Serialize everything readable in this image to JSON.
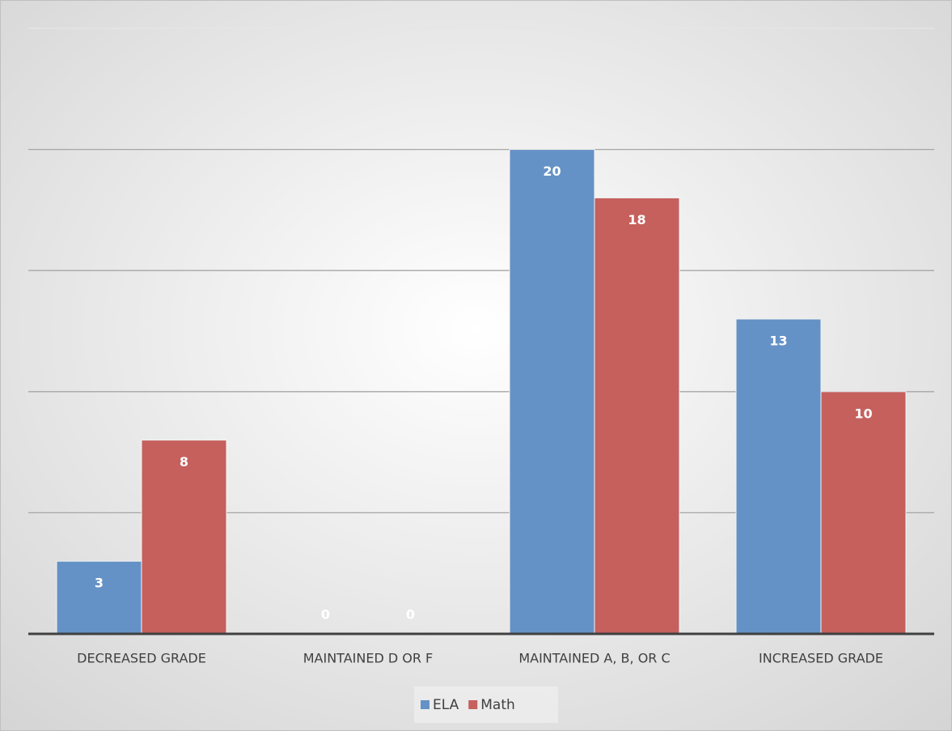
{
  "chart_data": {
    "type": "bar",
    "categories": [
      "DECREASED GRADE",
      "MAINTAINED D OR F",
      "MAINTAINED A, B, OR C",
      "INCREASED GRADE"
    ],
    "series": [
      {
        "name": "ELA",
        "color": "#6592c6",
        "values": [
          3,
          0,
          20,
          13
        ]
      },
      {
        "name": "Math",
        "color": "#c5605d",
        "values": [
          8,
          0,
          18,
          10
        ]
      }
    ],
    "ylim": [
      0,
      25
    ],
    "yticks": [
      0,
      5,
      10,
      15,
      20,
      25
    ],
    "grid": true,
    "legend": "bottom"
  }
}
